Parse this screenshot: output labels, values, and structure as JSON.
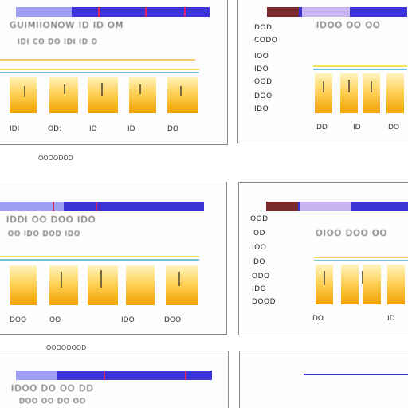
{
  "panels": [
    {
      "id": "top-left",
      "header": {
        "label": "",
        "color": "#3a33d6",
        "accent": "#9e9ef2"
      },
      "heading": "GUIMIIONOW  ID  ID  OM",
      "subheading": "IDI  CO  DO  IDI  ID  O",
      "tick_labels": [
        "IDI",
        "OD:",
        "ID",
        "ID",
        "DO"
      ]
    },
    {
      "id": "top-right",
      "header": {
        "label": "",
        "color": "#3a33d6",
        "accent": "#c8b4f0"
      },
      "heading": "IDOO  OO  OO",
      "row_labels": [
        "DOD",
        "CODO",
        "IOO",
        "IDO",
        "OOD",
        "DOO",
        "IDO"
      ],
      "tick_labels": [
        "DD",
        "ID",
        "DO"
      ]
    },
    {
      "id": "mid-left",
      "header": {
        "label": "",
        "color": "#3a33d6",
        "accent": "#9e9ef2"
      },
      "heading": "IDDI  OO  DOO  IDO",
      "subheading": "OO  IDO  DOD  IDO",
      "tick_labels": [
        "DOO",
        "OO",
        "IDO",
        "DOO"
      ]
    },
    {
      "id": "mid-right",
      "header": {
        "label": "",
        "color": "#3a33d6",
        "accent": "#c8b4f0"
      },
      "heading": "OIOO  DOO  OO",
      "row_labels": [
        "OOD",
        "OD",
        "IOO",
        "DO",
        "ODO",
        "IDO",
        "DOOD"
      ],
      "tick_labels": [
        "DO",
        "ID"
      ]
    },
    {
      "id": "bottom-left",
      "header": {
        "label": "",
        "color": "#3a33d6",
        "accent": "#9e9ef2"
      },
      "heading": "IDOO  DO  OO  DD",
      "subheading": "DOO  OO  DO  OO"
    },
    {
      "id": "bottom-right",
      "header": {
        "label": "",
        "color": "#3a33d6",
        "accent": "#c8b4f0"
      }
    }
  ],
  "caption_top": "OOOODOD",
  "caption_mid": "OOOOOOOD"
}
